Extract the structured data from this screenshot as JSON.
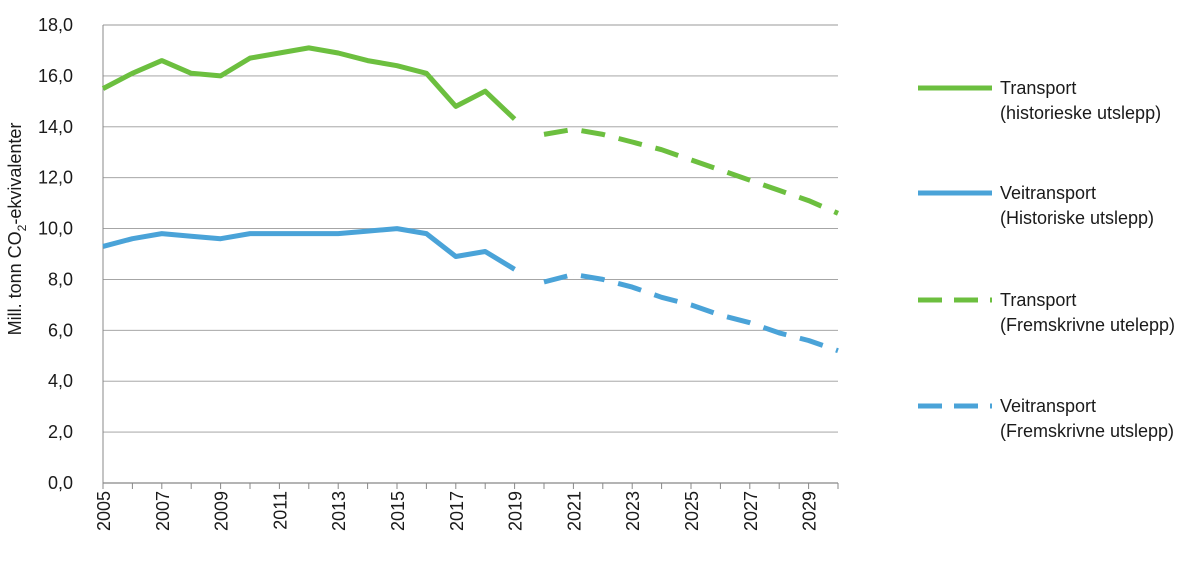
{
  "chart_data": {
    "type": "line",
    "title": "",
    "ylabel": {
      "prefix": "Mill. tonn CO",
      "subscript": "2",
      "suffix": "-ekvivalenter"
    },
    "xlabel": "",
    "ylim": [
      0,
      18
    ],
    "yticks": [
      "0,0",
      "2,0",
      "4,0",
      "6,0",
      "8,0",
      "10,0",
      "12,0",
      "14,0",
      "16,0",
      "18,0"
    ],
    "xlim": [
      2005,
      2030
    ],
    "xticks": [
      "2005",
      "2007",
      "2009",
      "2011",
      "2013",
      "2015",
      "2017",
      "2019",
      "2021",
      "2023",
      "2025",
      "2027",
      "2029"
    ],
    "grid": "horizontal",
    "legend_position": "right",
    "series": [
      {
        "name_lines": [
          "Transport",
          "(historieske utslepp)"
        ],
        "color": "#6cbf3f",
        "style": "solid",
        "x": [
          2005,
          2006,
          2007,
          2008,
          2009,
          2010,
          2011,
          2012,
          2013,
          2014,
          2015,
          2016,
          2017,
          2018,
          2019
        ],
        "values": [
          15.5,
          16.1,
          16.6,
          16.1,
          16.0,
          16.7,
          16.9,
          17.1,
          16.9,
          16.6,
          16.4,
          16.1,
          14.8,
          15.4,
          14.3
        ]
      },
      {
        "name_lines": [
          "Veitransport",
          "(Historiske utslepp)"
        ],
        "color": "#4aa3d8",
        "style": "solid",
        "x": [
          2005,
          2006,
          2007,
          2008,
          2009,
          2010,
          2011,
          2012,
          2013,
          2014,
          2015,
          2016,
          2017,
          2018,
          2019
        ],
        "values": [
          9.3,
          9.6,
          9.8,
          9.7,
          9.6,
          9.8,
          9.8,
          9.8,
          9.8,
          9.9,
          10.0,
          9.8,
          8.9,
          9.1,
          8.4
        ]
      },
      {
        "name_lines": [
          "Transport",
          "(Fremskrivne utelepp)"
        ],
        "color": "#6cbf3f",
        "style": "dashed",
        "x": [
          2020,
          2021,
          2022,
          2023,
          2024,
          2025,
          2026,
          2027,
          2028,
          2029,
          2030
        ],
        "values": [
          13.7,
          13.9,
          13.7,
          13.4,
          13.1,
          12.7,
          12.3,
          11.9,
          11.5,
          11.1,
          10.6
        ]
      },
      {
        "name_lines": [
          "Veitransport",
          "(Fremskrivne utslepp)"
        ],
        "color": "#4aa3d8",
        "style": "dashed",
        "x": [
          2020,
          2021,
          2022,
          2023,
          2024,
          2025,
          2026,
          2027,
          2028,
          2029,
          2030
        ],
        "values": [
          7.9,
          8.2,
          8.0,
          7.7,
          7.3,
          7.0,
          6.6,
          6.3,
          5.9,
          5.6,
          5.2
        ]
      }
    ]
  }
}
